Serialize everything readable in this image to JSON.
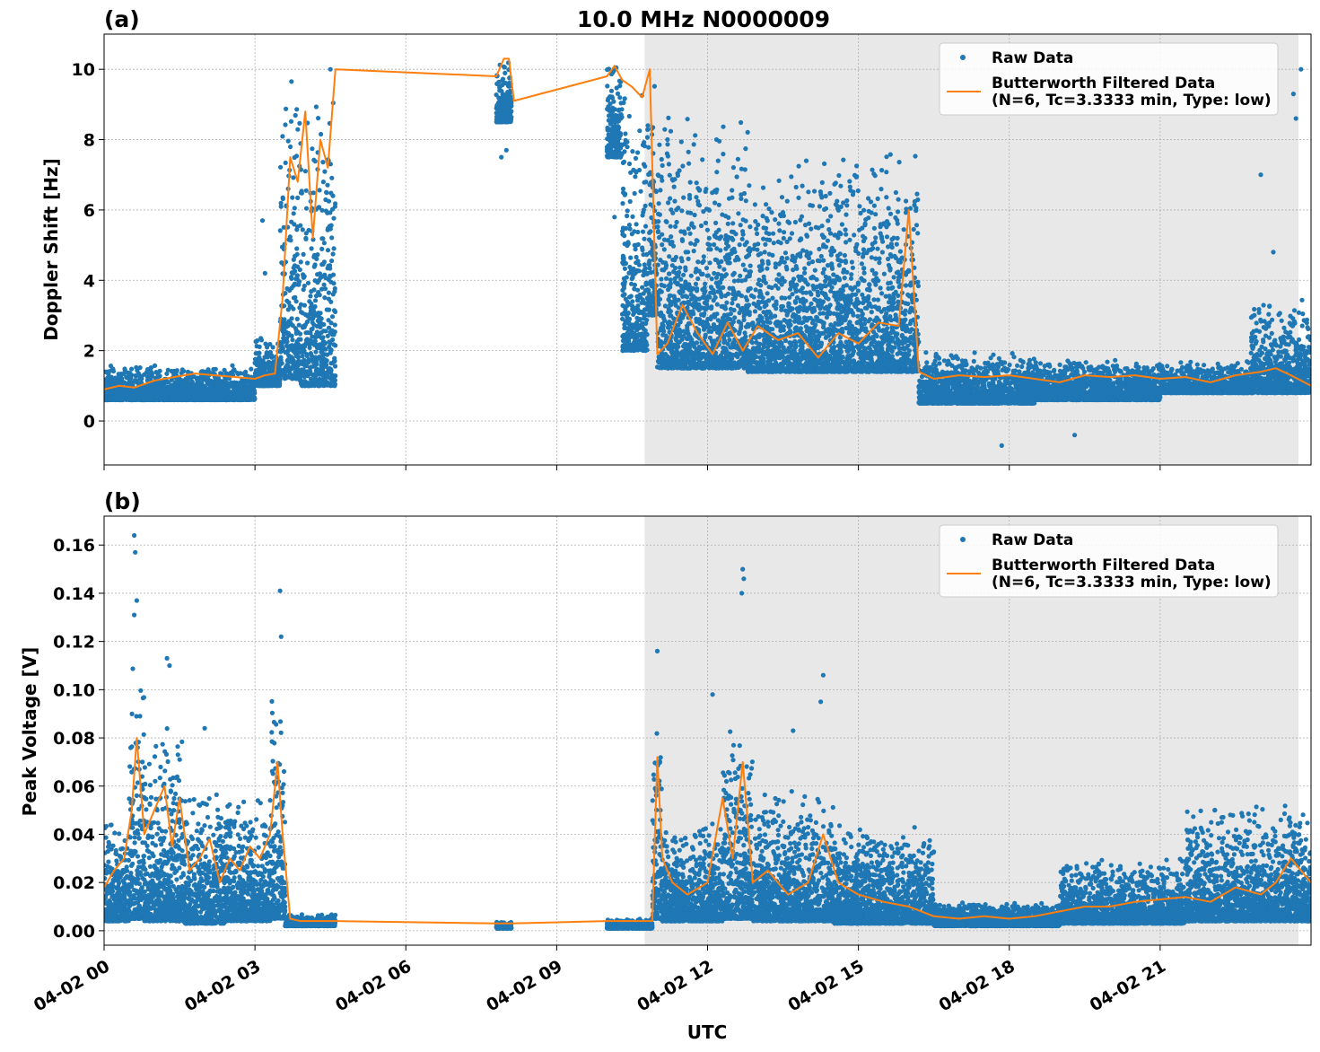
{
  "figure": {
    "title": "10.0 MHz N0000009",
    "xlabel": "UTC"
  },
  "chart_data": [
    {
      "type": "scatter",
      "panel_label": "(a)",
      "ylabel": "Doppler Shift [Hz]",
      "xlim": [
        0,
        24
      ],
      "ylim": [
        -1.25,
        11.0
      ],
      "yticks": [
        0,
        2,
        4,
        6,
        8,
        10
      ],
      "ytick_labels": [
        "0",
        "2",
        "4",
        "6",
        "8",
        "10"
      ],
      "xticks": [
        0,
        3,
        6,
        9,
        12,
        15,
        18,
        21
      ],
      "xtick_labels": [
        "04-02 00",
        "04-02 03",
        "04-02 06",
        "04-02 09",
        "04-02 12",
        "04-02 15",
        "04-02 18",
        "04-02 21"
      ],
      "grid": true,
      "shaded_region": {
        "x": [
          10.75,
          23.75
        ],
        "color": "#e8e8e8"
      },
      "legend": {
        "position": "top-right",
        "entries": [
          {
            "label": "Raw Data",
            "marker": "dot"
          },
          {
            "label": "Butterworth Filtered Data\n(N=6, Tc=3.3333 min, Type: low)",
            "marker": "line"
          }
        ]
      },
      "series": [
        {
          "name": "Raw Data",
          "color": "#1f77b4",
          "kind": "scatter",
          "bands": [
            {
              "x": [
                0.0,
                3.0
              ],
              "low": 0.6,
              "high": 1.6
            },
            {
              "x": [
                3.0,
                3.5
              ],
              "low": 1.0,
              "high": 2.5
            },
            {
              "x": [
                3.5,
                3.9
              ],
              "low": 1.2,
              "high": 10.3
            },
            {
              "x": [
                3.9,
                4.6
              ],
              "low": 1.0,
              "high": 10.3
            },
            {
              "x": [
                7.8,
                8.1
              ],
              "low": 8.5,
              "high": 10.3
            },
            {
              "x": [
                10.0,
                10.3
              ],
              "low": 7.5,
              "high": 10.3
            },
            {
              "x": [
                10.3,
                10.8
              ],
              "low": 2.0,
              "high": 10.3
            },
            {
              "x": [
                10.8,
                11.0
              ],
              "low": 3.0,
              "high": 10.3
            },
            {
              "x": [
                11.0,
                12.8
              ],
              "low": 1.5,
              "high": 9.0
            },
            {
              "x": [
                12.8,
                14.2
              ],
              "low": 1.4,
              "high": 7.5
            },
            {
              "x": [
                14.2,
                16.2
              ],
              "low": 1.4,
              "high": 8.0
            },
            {
              "x": [
                16.2,
                18.5
              ],
              "low": 0.5,
              "high": 2.0
            },
            {
              "x": [
                18.5,
                21.0
              ],
              "low": 0.6,
              "high": 1.8
            },
            {
              "x": [
                21.0,
                22.8
              ],
              "low": 0.8,
              "high": 1.7
            },
            {
              "x": [
                22.8,
                24.0
              ],
              "low": 0.8,
              "high": 3.5
            }
          ],
          "outliers": [
            {
              "x": 3.15,
              "y": 5.7
            },
            {
              "x": 3.2,
              "y": 4.2
            },
            {
              "x": 4.5,
              "y": 10.0
            },
            {
              "x": 7.9,
              "y": 7.5
            },
            {
              "x": 8.0,
              "y": 7.7
            },
            {
              "x": 8.1,
              "y": 9.1
            },
            {
              "x": 10.15,
              "y": 5.8
            },
            {
              "x": 10.35,
              "y": 3.6
            },
            {
              "x": 10.45,
              "y": 2.9
            },
            {
              "x": 17.85,
              "y": -0.7
            },
            {
              "x": 19.3,
              "y": -0.4
            },
            {
              "x": 23.0,
              "y": 7.0
            },
            {
              "x": 23.25,
              "y": 4.8
            },
            {
              "x": 23.65,
              "y": 9.3
            },
            {
              "x": 23.7,
              "y": 8.6
            },
            {
              "x": 23.8,
              "y": 10.0
            }
          ]
        },
        {
          "name": "Butterworth Filtered Data\n(N=6, Tc=3.3333 min, Type: low)",
          "color": "#ff7f0e",
          "kind": "line",
          "x": [
            0.0,
            0.3,
            0.6,
            1.0,
            1.4,
            1.8,
            2.2,
            2.6,
            3.0,
            3.2,
            3.4,
            3.55,
            3.7,
            3.85,
            4.0,
            4.15,
            4.3,
            4.45,
            4.6,
            7.8,
            7.95,
            8.05,
            8.15,
            10.0,
            10.15,
            10.3,
            10.5,
            10.7,
            10.85,
            11.0,
            11.2,
            11.5,
            11.8,
            12.1,
            12.4,
            12.7,
            13.0,
            13.4,
            13.8,
            14.2,
            14.6,
            15.0,
            15.4,
            15.8,
            16.0,
            16.2,
            16.5,
            17.0,
            17.5,
            18.0,
            18.5,
            19.0,
            19.5,
            20.0,
            20.5,
            21.0,
            21.5,
            22.0,
            22.5,
            23.0,
            23.3,
            23.6,
            24.0
          ],
          "y": [
            0.9,
            1.0,
            0.95,
            1.15,
            1.25,
            1.35,
            1.3,
            1.25,
            1.2,
            1.3,
            1.35,
            3.5,
            7.5,
            6.8,
            8.8,
            5.2,
            8.0,
            7.2,
            10.0,
            9.8,
            10.3,
            10.3,
            9.1,
            9.8,
            10.1,
            9.7,
            9.5,
            9.2,
            10.0,
            1.9,
            2.2,
            3.3,
            2.5,
            1.9,
            2.8,
            2.0,
            2.7,
            2.3,
            2.5,
            1.8,
            2.5,
            2.2,
            2.8,
            2.7,
            6.0,
            1.4,
            1.2,
            1.3,
            1.25,
            1.3,
            1.2,
            1.1,
            1.3,
            1.25,
            1.3,
            1.2,
            1.25,
            1.1,
            1.3,
            1.4,
            1.5,
            1.3,
            1.0
          ]
        }
      ]
    },
    {
      "type": "scatter",
      "panel_label": "(b)",
      "ylabel": "Peak Voltage [V]",
      "xlim": [
        0,
        24
      ],
      "ylim": [
        -0.006,
        0.172
      ],
      "yticks": [
        0.0,
        0.02,
        0.04,
        0.06,
        0.08,
        0.1,
        0.12,
        0.14,
        0.16
      ],
      "ytick_labels": [
        "0.00",
        "0.02",
        "0.04",
        "0.06",
        "0.08",
        "0.10",
        "0.12",
        "0.14",
        "0.16"
      ],
      "xticks": [
        0,
        3,
        6,
        9,
        12,
        15,
        18,
        21
      ],
      "xtick_labels": [
        "04-02 00",
        "04-02 03",
        "04-02 06",
        "04-02 09",
        "04-02 12",
        "04-02 15",
        "04-02 18",
        "04-02 21"
      ],
      "grid": true,
      "shaded_region": {
        "x": [
          10.75,
          23.75
        ],
        "color": "#e8e8e8"
      },
      "legend": {
        "position": "top-right",
        "entries": [
          {
            "label": "Raw Data",
            "marker": "dot"
          },
          {
            "label": "Butterworth Filtered Data\n(N=6, Tc=3.3333 min, Type: low)",
            "marker": "line"
          }
        ]
      },
      "series": [
        {
          "name": "Raw Data",
          "color": "#1f77b4",
          "kind": "scatter",
          "bands": [
            {
              "x": [
                0.0,
                0.5
              ],
              "low": 0.004,
              "high": 0.05
            },
            {
              "x": [
                0.5,
                0.8
              ],
              "low": 0.005,
              "high": 0.12
            },
            {
              "x": [
                0.8,
                1.6
              ],
              "low": 0.004,
              "high": 0.09
            },
            {
              "x": [
                1.6,
                2.4
              ],
              "low": 0.003,
              "high": 0.06
            },
            {
              "x": [
                2.4,
                3.3
              ],
              "low": 0.004,
              "high": 0.06
            },
            {
              "x": [
                3.3,
                3.6
              ],
              "low": 0.005,
              "high": 0.1
            },
            {
              "x": [
                3.6,
                4.6
              ],
              "low": 0.002,
              "high": 0.007
            },
            {
              "x": [
                7.8,
                8.1
              ],
              "low": 0.001,
              "high": 0.004
            },
            {
              "x": [
                10.0,
                10.9
              ],
              "low": 0.001,
              "high": 0.005
            },
            {
              "x": [
                10.9,
                11.1
              ],
              "low": 0.005,
              "high": 0.11
            },
            {
              "x": [
                11.1,
                12.3
              ],
              "low": 0.004,
              "high": 0.045
            },
            {
              "x": [
                12.3,
                12.9
              ],
              "low": 0.005,
              "high": 0.09
            },
            {
              "x": [
                12.9,
                14.5
              ],
              "low": 0.004,
              "high": 0.06
            },
            {
              "x": [
                14.5,
                16.5
              ],
              "low": 0.003,
              "high": 0.045
            },
            {
              "x": [
                16.5,
                19.0
              ],
              "low": 0.002,
              "high": 0.012
            },
            {
              "x": [
                19.0,
                21.5
              ],
              "low": 0.003,
              "high": 0.03
            },
            {
              "x": [
                21.5,
                24.0
              ],
              "low": 0.004,
              "high": 0.055
            }
          ],
          "outliers": [
            {
              "x": 0.6,
              "y": 0.164
            },
            {
              "x": 0.62,
              "y": 0.157
            },
            {
              "x": 0.65,
              "y": 0.137
            },
            {
              "x": 0.6,
              "y": 0.131
            },
            {
              "x": 1.25,
              "y": 0.113
            },
            {
              "x": 1.3,
              "y": 0.11
            },
            {
              "x": 2.0,
              "y": 0.084
            },
            {
              "x": 3.5,
              "y": 0.141
            },
            {
              "x": 3.52,
              "y": 0.122
            },
            {
              "x": 12.7,
              "y": 0.15
            },
            {
              "x": 12.72,
              "y": 0.146
            },
            {
              "x": 12.68,
              "y": 0.14
            },
            {
              "x": 12.1,
              "y": 0.098
            },
            {
              "x": 14.3,
              "y": 0.106
            },
            {
              "x": 14.25,
              "y": 0.095
            },
            {
              "x": 13.7,
              "y": 0.083
            },
            {
              "x": 11.0,
              "y": 0.116
            }
          ]
        },
        {
          "name": "Butterworth Filtered Data\n(N=6, Tc=3.3333 min, Type: low)",
          "color": "#ff7f0e",
          "kind": "line",
          "x": [
            0.0,
            0.2,
            0.4,
            0.55,
            0.65,
            0.8,
            1.0,
            1.2,
            1.35,
            1.5,
            1.7,
            1.9,
            2.1,
            2.3,
            2.5,
            2.7,
            2.9,
            3.1,
            3.3,
            3.45,
            3.55,
            3.7,
            3.9,
            4.6,
            7.8,
            8.1,
            10.0,
            10.5,
            10.9,
            11.0,
            11.1,
            11.3,
            11.6,
            12.0,
            12.3,
            12.5,
            12.7,
            12.9,
            13.2,
            13.6,
            14.0,
            14.3,
            14.6,
            15.0,
            15.5,
            16.0,
            16.5,
            17.0,
            17.5,
            18.0,
            18.5,
            19.0,
            19.5,
            20.0,
            20.5,
            21.0,
            21.5,
            22.0,
            22.5,
            23.0,
            23.3,
            23.6,
            24.0
          ],
          "y": [
            0.018,
            0.025,
            0.03,
            0.05,
            0.08,
            0.04,
            0.05,
            0.06,
            0.035,
            0.055,
            0.025,
            0.03,
            0.038,
            0.02,
            0.03,
            0.025,
            0.035,
            0.03,
            0.04,
            0.07,
            0.04,
            0.005,
            0.004,
            0.004,
            0.003,
            0.003,
            0.004,
            0.004,
            0.004,
            0.072,
            0.03,
            0.02,
            0.015,
            0.02,
            0.055,
            0.03,
            0.07,
            0.02,
            0.025,
            0.015,
            0.02,
            0.04,
            0.02,
            0.015,
            0.012,
            0.01,
            0.006,
            0.005,
            0.006,
            0.005,
            0.006,
            0.008,
            0.01,
            0.01,
            0.012,
            0.013,
            0.014,
            0.012,
            0.018,
            0.015,
            0.02,
            0.03,
            0.02
          ]
        }
      ]
    }
  ]
}
